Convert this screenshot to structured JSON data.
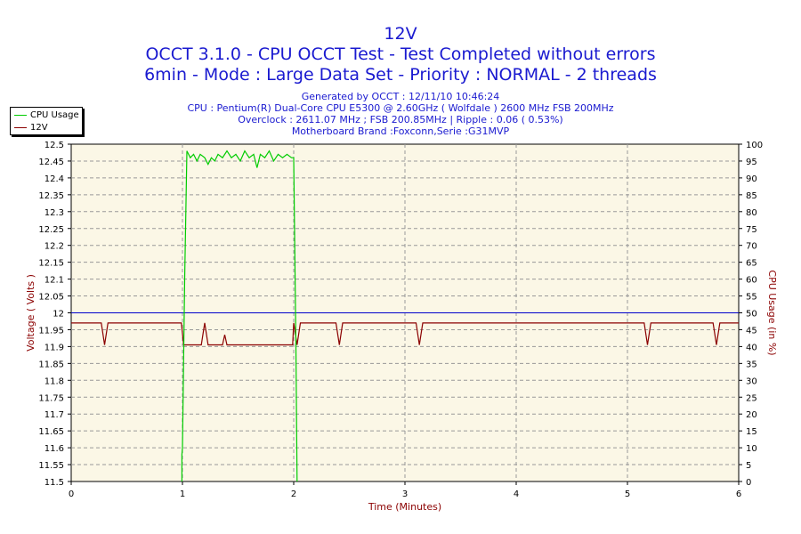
{
  "header": {
    "title_line1": "12V",
    "title_line2": "OCCT 3.1.0 - CPU OCCT Test - Test Completed without errors",
    "title_line3": "6min - Mode : Large Data Set - Priority : NORMAL - 2 threads",
    "info_generated": "Generated by OCCT : 12/11/10 10:46:24",
    "info_cpu": "CPU : Pentium(R) Dual-Core CPU E5300 @ 2.60GHz ( Wolfdale ) 2600 MHz FSB 200MHz",
    "info_overclock": "Overclock : 2611.07 MHz ; FSB 200.85MHz | Ripple : 0.06 ( 0.53%)",
    "info_motherboard": "Motherboard Brand :Foxconn,Serie :G31MVP"
  },
  "legend": {
    "items": [
      {
        "label": "CPU Usage",
        "color": "#00cc00"
      },
      {
        "label": "12V",
        "color": "#8b0000"
      }
    ]
  },
  "colors": {
    "plot_bg": "#fbf7e6",
    "grid": "#999999",
    "axis_label": "#8b0000",
    "reference_line": "#0000cc"
  },
  "chart_data": {
    "type": "line",
    "xlabel": "Time (Minutes)",
    "ylabel_left": "Voltage ( Volts )",
    "ylabel_right": "CPU Usage (in %)",
    "xlim": [
      0,
      6
    ],
    "ylim_left": [
      11.5,
      12.5
    ],
    "ylim_right": [
      0,
      100
    ],
    "x_ticks": [
      "0",
      "1",
      "2",
      "3",
      "4",
      "5",
      "6"
    ],
    "y_left_ticks": [
      "11.5",
      "11.55",
      "11.6",
      "11.65",
      "11.7",
      "11.75",
      "11.8",
      "11.85",
      "11.9",
      "11.95",
      "12",
      "12.05",
      "12.1",
      "12.15",
      "12.2",
      "12.25",
      "12.3",
      "12.35",
      "12.4",
      "12.45",
      "12.5"
    ],
    "y_right_ticks": [
      "0",
      "5",
      "10",
      "15",
      "20",
      "25",
      "30",
      "35",
      "40",
      "45",
      "50",
      "55",
      "60",
      "65",
      "70",
      "75",
      "80",
      "85",
      "90",
      "95",
      "100"
    ],
    "grid": true,
    "reference_line": 12.0,
    "series": [
      {
        "name": "12V",
        "axis": "left",
        "color": "#8b0000",
        "points": [
          [
            0.0,
            11.97
          ],
          [
            0.27,
            11.97
          ],
          [
            0.3,
            11.905
          ],
          [
            0.33,
            11.97
          ],
          [
            0.99,
            11.97
          ],
          [
            1.01,
            11.905
          ],
          [
            1.17,
            11.905
          ],
          [
            1.2,
            11.97
          ],
          [
            1.23,
            11.905
          ],
          [
            1.36,
            11.905
          ],
          [
            1.38,
            11.935
          ],
          [
            1.4,
            11.905
          ],
          [
            1.99,
            11.905
          ],
          [
            2.0,
            11.97
          ],
          [
            2.03,
            11.905
          ],
          [
            2.06,
            11.97
          ],
          [
            2.38,
            11.97
          ],
          [
            2.41,
            11.905
          ],
          [
            2.44,
            11.97
          ],
          [
            3.1,
            11.97
          ],
          [
            3.13,
            11.905
          ],
          [
            3.16,
            11.97
          ],
          [
            5.15,
            11.97
          ],
          [
            5.18,
            11.905
          ],
          [
            5.21,
            11.97
          ],
          [
            5.77,
            11.97
          ],
          [
            5.8,
            11.905
          ],
          [
            5.83,
            11.97
          ],
          [
            6.0,
            11.97
          ]
        ]
      },
      {
        "name": "CPU Usage",
        "axis": "right",
        "color": "#00cc00",
        "points": [
          [
            0.995,
            0
          ],
          [
            0.995,
            8
          ],
          [
            1.0,
            10
          ],
          [
            1.02,
            60
          ],
          [
            1.04,
            98
          ],
          [
            1.07,
            96
          ],
          [
            1.1,
            97
          ],
          [
            1.13,
            95
          ],
          [
            1.16,
            97
          ],
          [
            1.2,
            96
          ],
          [
            1.23,
            94
          ],
          [
            1.26,
            96
          ],
          [
            1.29,
            95
          ],
          [
            1.32,
            97
          ],
          [
            1.36,
            96
          ],
          [
            1.4,
            98
          ],
          [
            1.44,
            96
          ],
          [
            1.48,
            97
          ],
          [
            1.52,
            95
          ],
          [
            1.56,
            98
          ],
          [
            1.6,
            96
          ],
          [
            1.64,
            97
          ],
          [
            1.67,
            93
          ],
          [
            1.7,
            97
          ],
          [
            1.74,
            96
          ],
          [
            1.78,
            98
          ],
          [
            1.82,
            95
          ],
          [
            1.86,
            97
          ],
          [
            1.9,
            96
          ],
          [
            1.94,
            97
          ],
          [
            1.98,
            96
          ],
          [
            2.0,
            96
          ],
          [
            2.02,
            40
          ],
          [
            2.03,
            0
          ]
        ]
      }
    ]
  }
}
